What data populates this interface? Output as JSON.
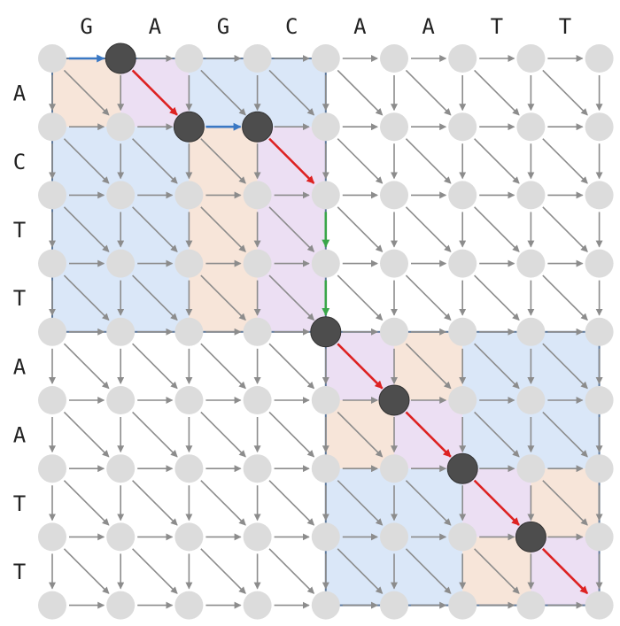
{
  "top_sequence": [
    "G",
    "A",
    "G",
    "C",
    "A",
    "A",
    "T",
    "T"
  ],
  "left_sequence": [
    "A",
    "C",
    "T",
    "T",
    "A",
    "A",
    "T",
    "T"
  ],
  "grid": {
    "rows": 9,
    "cols": 9
  },
  "colors": {
    "node": "#dcdcdc",
    "path_node": "#4d4d4d",
    "edge": "#8c8c8c",
    "horizontal_path": "#3a78c4",
    "diagonal_path": "#dd2222",
    "vertical_path": "#3aa64a",
    "cell_blue": "#dae7f8",
    "cell_peach": "#f7e5d9",
    "cell_lavender": "#ecdff3",
    "region_border": "#5f7a9c"
  },
  "shaded_cells": [
    {
      "r": 0,
      "c": 0,
      "fill": "peach"
    },
    {
      "r": 0,
      "c": 1,
      "fill": "lavender"
    },
    {
      "r": 0,
      "c": 2,
      "fill": "blue"
    },
    {
      "r": 0,
      "c": 3,
      "fill": "blue"
    },
    {
      "r": 1,
      "c": 0,
      "fill": "blue"
    },
    {
      "r": 1,
      "c": 1,
      "fill": "blue"
    },
    {
      "r": 1,
      "c": 2,
      "fill": "peach"
    },
    {
      "r": 1,
      "c": 3,
      "fill": "lavender"
    },
    {
      "r": 2,
      "c": 0,
      "fill": "blue"
    },
    {
      "r": 2,
      "c": 1,
      "fill": "blue"
    },
    {
      "r": 2,
      "c": 2,
      "fill": "peach"
    },
    {
      "r": 2,
      "c": 3,
      "fill": "lavender"
    },
    {
      "r": 3,
      "c": 0,
      "fill": "blue"
    },
    {
      "r": 3,
      "c": 1,
      "fill": "blue"
    },
    {
      "r": 3,
      "c": 2,
      "fill": "peach"
    },
    {
      "r": 3,
      "c": 3,
      "fill": "lavender"
    },
    {
      "r": 4,
      "c": 4,
      "fill": "lavender"
    },
    {
      "r": 4,
      "c": 5,
      "fill": "peach"
    },
    {
      "r": 4,
      "c": 6,
      "fill": "blue"
    },
    {
      "r": 4,
      "c": 7,
      "fill": "blue"
    },
    {
      "r": 5,
      "c": 4,
      "fill": "peach"
    },
    {
      "r": 5,
      "c": 5,
      "fill": "lavender"
    },
    {
      "r": 5,
      "c": 6,
      "fill": "blue"
    },
    {
      "r": 5,
      "c": 7,
      "fill": "blue"
    },
    {
      "r": 6,
      "c": 4,
      "fill": "blue"
    },
    {
      "r": 6,
      "c": 5,
      "fill": "blue"
    },
    {
      "r": 6,
      "c": 6,
      "fill": "lavender"
    },
    {
      "r": 6,
      "c": 7,
      "fill": "peach"
    },
    {
      "r": 7,
      "c": 4,
      "fill": "blue"
    },
    {
      "r": 7,
      "c": 5,
      "fill": "blue"
    },
    {
      "r": 7,
      "c": 6,
      "fill": "peach"
    },
    {
      "r": 7,
      "c": 7,
      "fill": "lavender"
    }
  ],
  "region_borders": [
    {
      "r0": 0,
      "c0": 0,
      "r1": 4,
      "c1": 4
    },
    {
      "r0": 4,
      "c0": 4,
      "r1": 8,
      "c1": 8
    }
  ],
  "path_nodes": [
    {
      "r": 0,
      "c": 1
    },
    {
      "r": 1,
      "c": 2
    },
    {
      "r": 1,
      "c": 3
    },
    {
      "r": 4,
      "c": 4
    },
    {
      "r": 5,
      "c": 5
    },
    {
      "r": 6,
      "c": 6
    },
    {
      "r": 7,
      "c": 7
    }
  ],
  "path_edges": [
    {
      "type": "horizontal",
      "from": [
        0,
        0
      ],
      "to": [
        0,
        1
      ]
    },
    {
      "type": "diagonal",
      "from": [
        0,
        1
      ],
      "to": [
        1,
        2
      ]
    },
    {
      "type": "horizontal",
      "from": [
        1,
        2
      ],
      "to": [
        1,
        3
      ]
    },
    {
      "type": "diagonal",
      "from": [
        1,
        3
      ],
      "to": [
        2,
        4
      ]
    },
    {
      "type": "vertical",
      "from": [
        2,
        4
      ],
      "to": [
        3,
        4
      ]
    },
    {
      "type": "vertical",
      "from": [
        3,
        4
      ],
      "to": [
        4,
        4
      ]
    },
    {
      "type": "diagonal",
      "from": [
        4,
        4
      ],
      "to": [
        5,
        5
      ]
    },
    {
      "type": "diagonal",
      "from": [
        5,
        5
      ],
      "to": [
        6,
        6
      ]
    },
    {
      "type": "diagonal",
      "from": [
        6,
        6
      ],
      "to": [
        7,
        7
      ]
    },
    {
      "type": "diagonal",
      "from": [
        7,
        7
      ],
      "to": [
        8,
        8
      ]
    }
  ]
}
